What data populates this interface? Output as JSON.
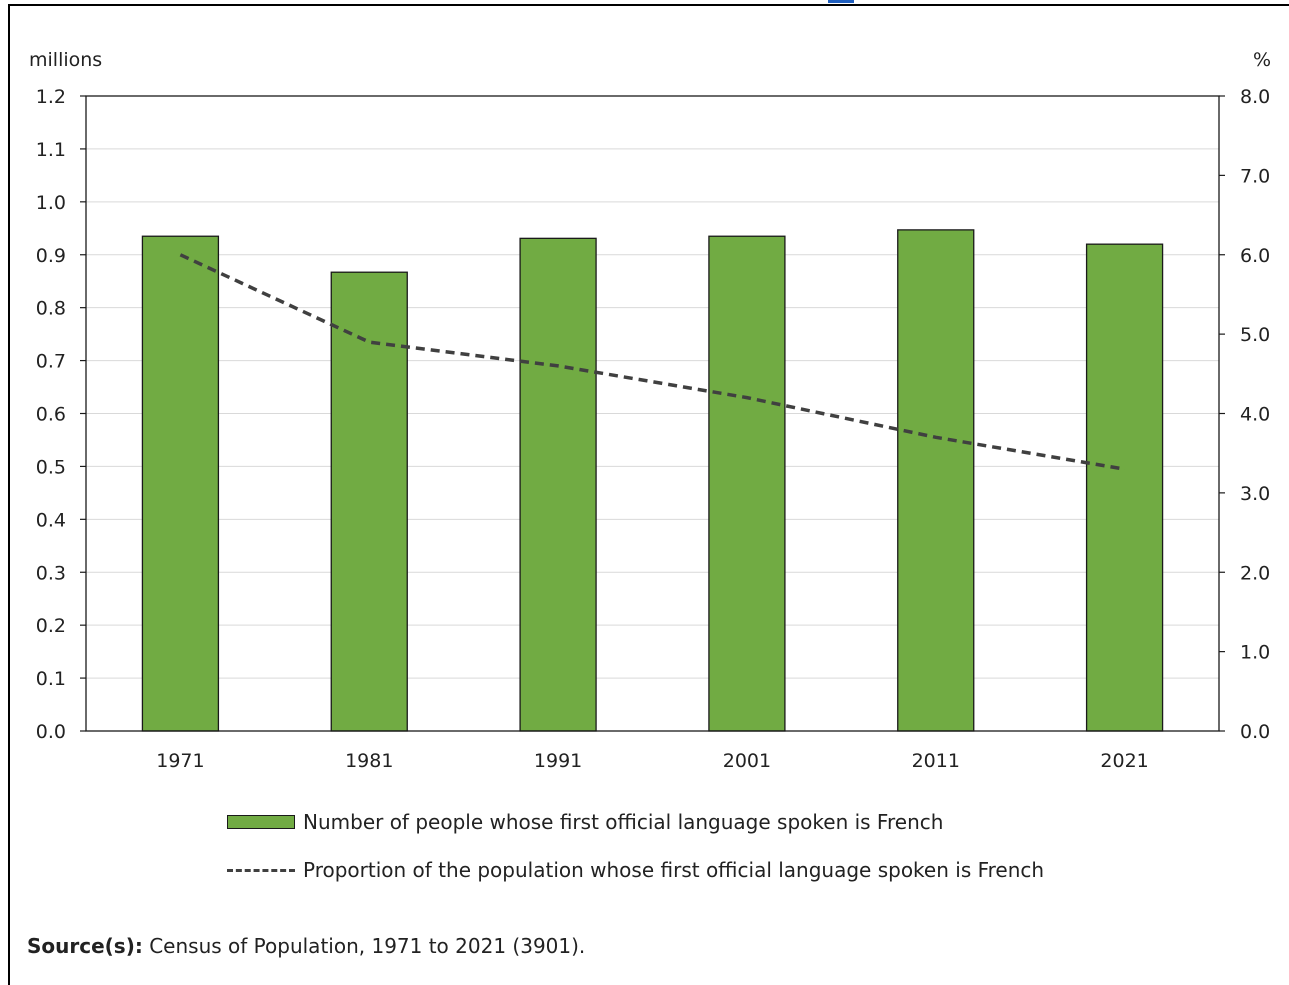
{
  "chart_data": {
    "type": "bar",
    "categories": [
      "1971",
      "1981",
      "1991",
      "2001",
      "2011",
      "2021"
    ],
    "series": [
      {
        "name": "Number of people whose first official language spoken is French",
        "type": "bar",
        "axis": "left",
        "values": [
          0.935,
          0.867,
          0.931,
          0.935,
          0.947,
          0.92
        ],
        "color": "#71ab43"
      },
      {
        "name": "Proportion of the population whose first official language spoken is French",
        "type": "line",
        "style": "dashed",
        "axis": "right",
        "values": [
          6.0,
          4.9,
          4.6,
          4.2,
          3.7,
          3.3
        ],
        "color": "#404040"
      }
    ],
    "y_left": {
      "label": "millions",
      "ylim": [
        0,
        1.2
      ],
      "ticks": [
        "0.0",
        "0.1",
        "0.2",
        "0.3",
        "0.4",
        "0.5",
        "0.6",
        "0.7",
        "0.8",
        "0.9",
        "1.0",
        "1.1",
        "1.2"
      ]
    },
    "y_right": {
      "label": "%",
      "ylim": [
        0,
        8
      ],
      "ticks": [
        "0.0",
        "1.0",
        "2.0",
        "3.0",
        "4.0",
        "5.0",
        "6.0",
        "7.0",
        "8.0"
      ]
    },
    "grid": true,
    "legend_position": "bottom"
  },
  "source": {
    "label": "Source(s):",
    "text": " Census of Population, 1971 to 2021 (3901)."
  }
}
